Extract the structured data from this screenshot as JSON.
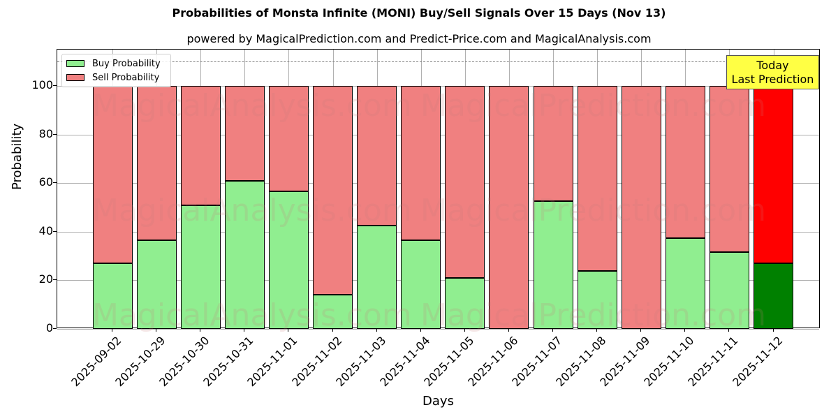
{
  "title": "Probabilities of Monsta Infinite (MONI) Buy/Sell Signals Over 15 Days (Nov 13)",
  "subtitle": "powered by MagicalPrediction.com and Predict-Price.com and MagicalAnalysis.com",
  "watermarks": [
    "MagicalAnalysis.com",
    "MagicalPrediction.com"
  ],
  "annotation": {
    "line1": "Today",
    "line2": "Last Prediction"
  },
  "colors": {
    "buy": "#90ee90",
    "sell": "#f08080",
    "buy_today": "#008000",
    "sell_today": "#ff0000",
    "annotation_bg": "#ffff44"
  },
  "chart_data": {
    "type": "bar",
    "stacked": true,
    "title": "Probabilities of Monsta Infinite (MONI) Buy/Sell Signals Over 15 Days (Nov 13)",
    "subtitle": "powered by MagicalPrediction.com and Predict-Price.com and MagicalAnalysis.com",
    "xlabel": "Days",
    "ylabel": "Probability",
    "ylim": [
      0,
      115
    ],
    "yticks": [
      0,
      20,
      40,
      60,
      80,
      100
    ],
    "grid": true,
    "legend_position": "upper left",
    "reference_line": {
      "y": 110,
      "style": "dashed",
      "color": "#808080"
    },
    "categories": [
      "2025-09-02",
      "2025-10-29",
      "2025-10-30",
      "2025-10-31",
      "2025-11-01",
      "2025-11-02",
      "2025-11-03",
      "2025-11-04",
      "2025-11-05",
      "2025-11-06",
      "2025-11-07",
      "2025-11-08",
      "2025-11-09",
      "2025-11-10",
      "2025-11-11",
      "2025-11-12"
    ],
    "series": [
      {
        "name": "Buy Probability",
        "values": [
          27,
          36.5,
          51,
          61,
          56.5,
          14,
          42.5,
          36.5,
          21,
          0,
          52.5,
          24,
          0,
          37.5,
          31.5,
          27
        ]
      },
      {
        "name": "Sell Probability",
        "values": [
          73,
          63.5,
          49,
          39,
          43.5,
          86,
          57.5,
          63.5,
          79,
          100,
          47.5,
          76,
          100,
          62.5,
          68.5,
          73
        ]
      }
    ],
    "highlight": {
      "category": "2025-11-12",
      "label": "Today\nLast Prediction"
    }
  }
}
